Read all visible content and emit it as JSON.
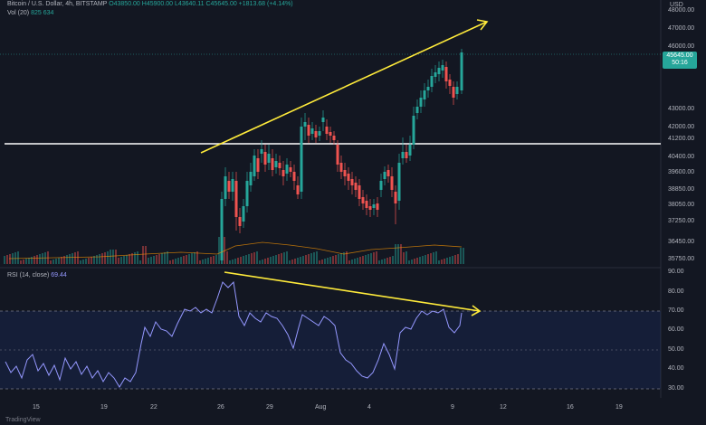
{
  "header": {
    "line1": "Bitcoin / U.S. Dollar, 4h, BITSTAMP",
    "ohlc": "O43850.00 H45900.00 L43640.11 C45645.00 +1813.68 (+4.14%)",
    "vol_label": "Vol (20)",
    "vol_values": "825  634"
  },
  "rsi_header": {
    "label": "RSI (14, close)",
    "value": "69.44"
  },
  "currency": "USD",
  "last_price": {
    "price": "45645.00",
    "countdown": "50:16"
  },
  "price_axis": [
    "48000.00",
    "47000.00",
    "46000.00",
    "45000.00",
    "44000.00",
    "43000.00",
    "42000.00",
    "41200.00",
    "40400.00",
    "39600.00",
    "38850.00",
    "38050.00",
    "37250.00",
    "36450.00",
    "35750.00"
  ],
  "rsi_axis": [
    "90.00",
    "80.00",
    "70.00",
    "60.00",
    "50.00",
    "40.00",
    "30.00"
  ],
  "time_axis": [
    "15",
    "19",
    "22",
    "26",
    "29",
    "Aug",
    "4",
    "9",
    "12",
    "16",
    "19"
  ],
  "footer_logo": "TradingView",
  "colors": {
    "up": "#26a69a",
    "down": "#ef5350",
    "trendline": "#ffeb3b",
    "level": "#ffffff",
    "rsi": "#9598ff",
    "bg": "#131722"
  }
}
